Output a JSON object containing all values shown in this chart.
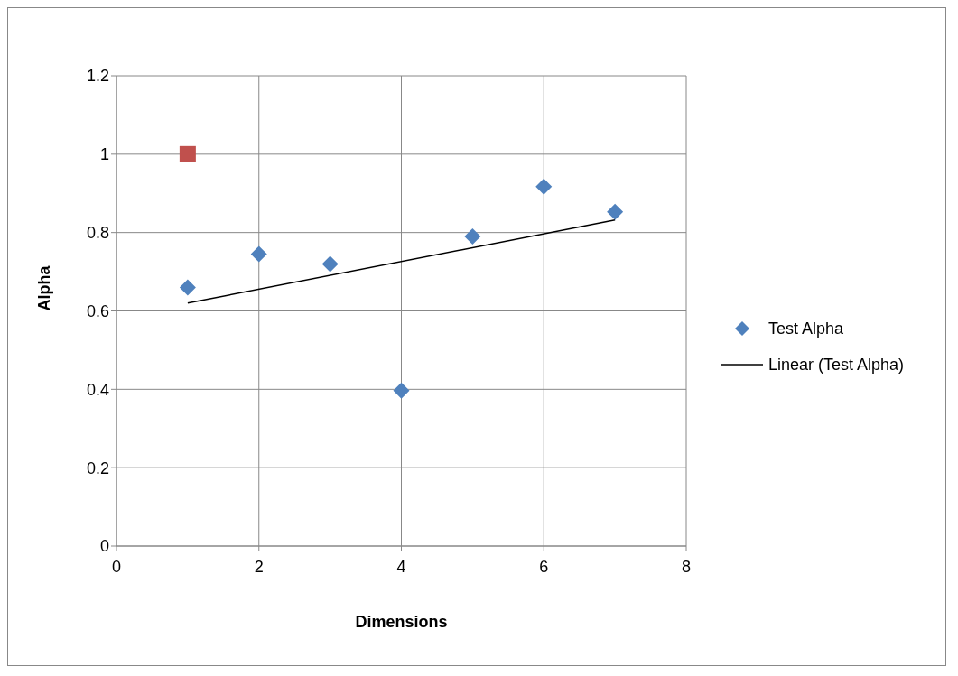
{
  "chart_data": {
    "type": "scatter",
    "xlabel": "Dimensions",
    "ylabel": "Alpha",
    "xlim": [
      0,
      8
    ],
    "xticks": [
      0,
      2,
      4,
      6,
      8
    ],
    "ylim": [
      0,
      1.2
    ],
    "yticks": [
      0,
      0.2,
      0.4,
      0.6,
      0.8,
      1,
      1.2
    ],
    "grid": true,
    "legend": "right",
    "series": [
      {
        "name": "Test Alpha",
        "color": "#4f81bd",
        "marker": "diamond",
        "x": [
          1,
          2,
          3,
          4,
          5,
          6,
          7
        ],
        "values": [
          0.66,
          0.745,
          0.72,
          0.397,
          0.79,
          0.917,
          0.853
        ]
      },
      {
        "color": "#c0504d",
        "marker": "square",
        "x": [
          1
        ],
        "values": [
          1
        ]
      },
      {
        "name": "Linear (Test Alpha)",
        "type": "line",
        "color": "#000000",
        "marker": "none",
        "line_style": "solid",
        "x": [
          1,
          7
        ],
        "values": [
          0.62,
          0.832
        ]
      }
    ]
  }
}
